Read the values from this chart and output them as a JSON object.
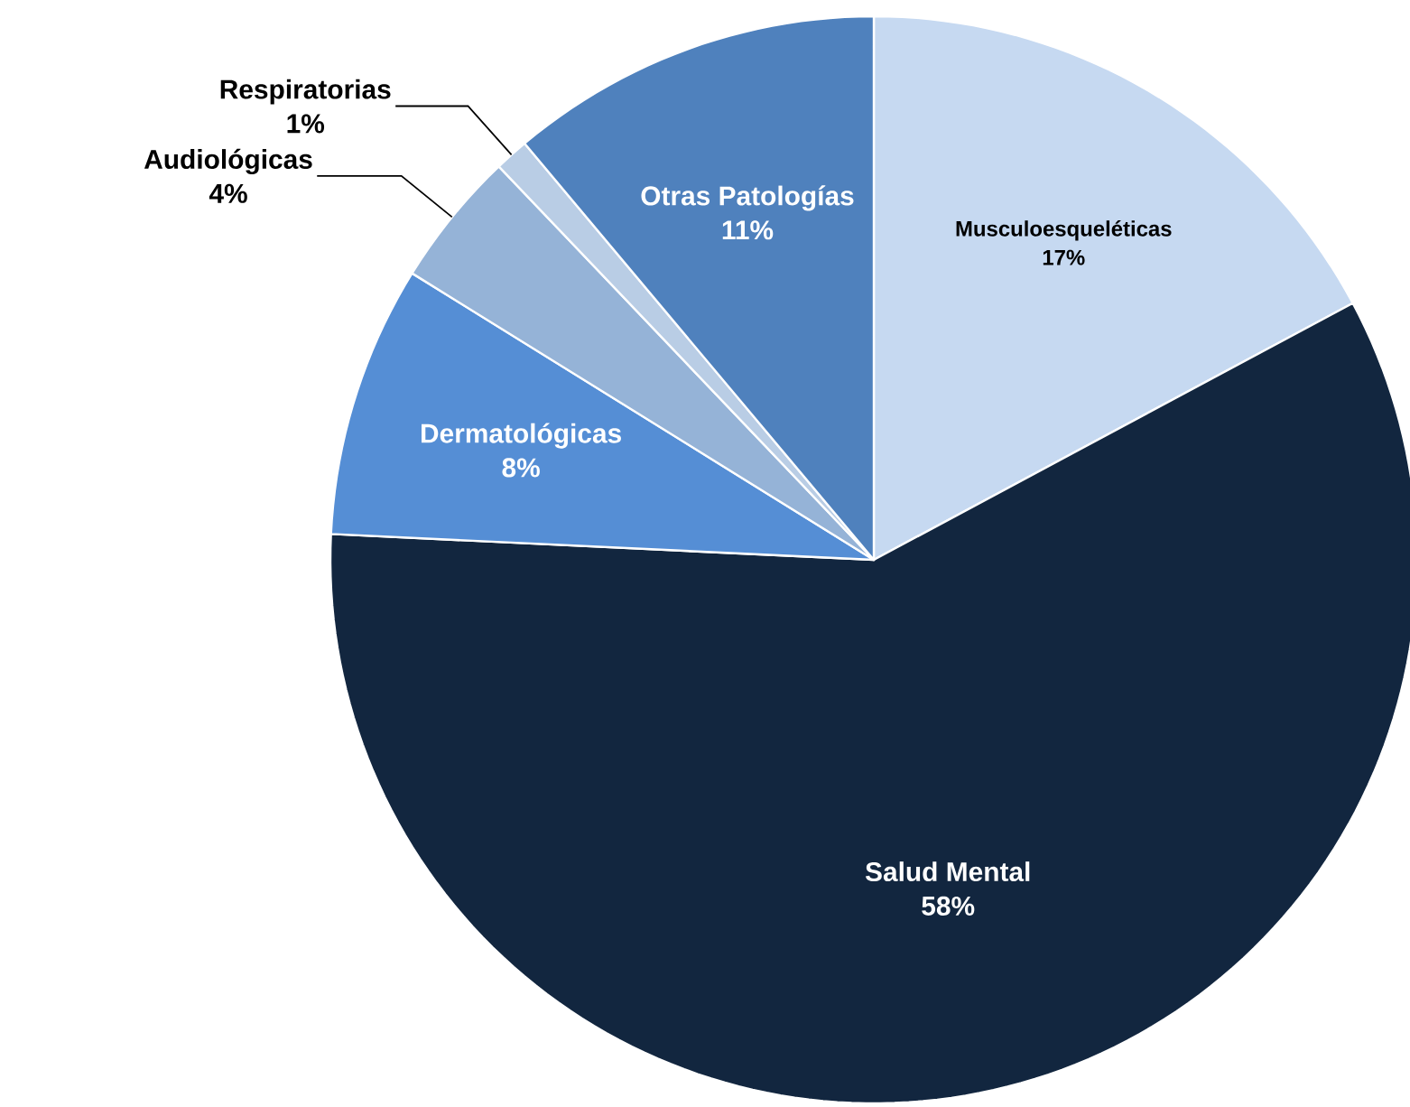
{
  "chart_data": {
    "type": "pie",
    "categories": [
      "Musculoesqueléticas",
      "Salud Mental",
      "Dermatológicas",
      "Audiológicas",
      "Respiratorias",
      "Otras Patologías"
    ],
    "values": [
      17,
      58,
      8,
      4,
      1,
      11
    ],
    "value_labels": [
      "17%",
      "58%",
      "8%",
      "4%",
      "1%",
      "11%"
    ],
    "colors": [
      "#c6d9f1",
      "#12263f",
      "#558ed5",
      "#95b3d7",
      "#b9cde5",
      "#4f81bd"
    ]
  }
}
